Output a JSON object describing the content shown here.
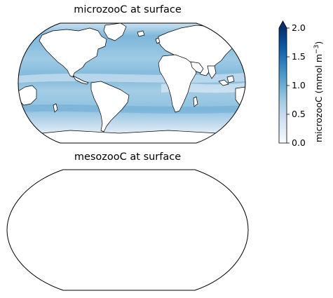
{
  "maps": [
    {
      "title": "microzooC at surface",
      "has_data": true
    },
    {
      "title": "mesozooC at surface",
      "has_data": false
    }
  ],
  "colorbar": {
    "ticks": [
      "0.0",
      "0.5",
      "1.0",
      "1.5",
      "2.0"
    ],
    "tick_values": [
      0.0,
      0.5,
      1.0,
      1.5,
      2.0
    ],
    "range": [
      0.0,
      2.0
    ],
    "extend": "max",
    "label_prefix": "microzooC (mmol m",
    "label_exp": "−3",
    "label_suffix": ")",
    "colormap": "Blues",
    "color_low": "#f7fbff",
    "color_high": "#08306b"
  },
  "colors": {
    "ocean_base": "#a9cde6",
    "land": "#ffffff",
    "coast": "#000000"
  }
}
